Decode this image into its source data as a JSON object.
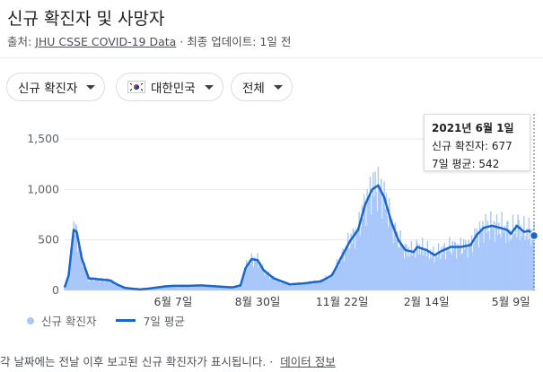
{
  "title": "신규 확진자 및 사망자",
  "source": {
    "prefix": "출처: ",
    "link": "JHU CSSE COVID-19 Data",
    "separator": " · ",
    "updated": "최종 업데이트: 1일 전"
  },
  "chips": [
    {
      "label": "신규 확진자"
    },
    {
      "label": "대한민국",
      "icon": "korea-flag-icon"
    },
    {
      "label": "전체"
    }
  ],
  "tooltip": {
    "date": "2021년 6월 1일",
    "line1": "신규 확진자: 677",
    "line2": "7일 평균: 542"
  },
  "legend": {
    "series1": "신규 확진자",
    "series2": "7일 평균"
  },
  "footer": {
    "text": "각 날짜에는 전날 이후 보고된 신규 확진자가 표시됩니다.",
    "sep": "·",
    "link": "데이터 정보"
  },
  "colors": {
    "bar": "#a8c7fa",
    "line": "#1a66c9",
    "grid": "#e8eaed",
    "axis_text": "#5f6368"
  },
  "chart_data": {
    "type": "bar",
    "title": "신규 확진자 및 사망자",
    "ylim": [
      0,
      1500
    ],
    "yticks": [
      0,
      500,
      1000,
      1500
    ],
    "ytick_labels": [
      "0",
      "500",
      "1,000",
      "1,500"
    ],
    "xticks": [
      {
        "date": "2020-06-07",
        "label": "6월 7일"
      },
      {
        "date": "2020-08-30",
        "label": "8월 30일"
      },
      {
        "date": "2020-11-22",
        "label": "11월 22일"
      },
      {
        "date": "2021-02-14",
        "label": "2월 14일"
      },
      {
        "date": "2021-05-09",
        "label": "5월 9일"
      }
    ],
    "xrange": [
      "2020-02-20",
      "2021-06-01"
    ],
    "grid": true,
    "legend_position": "bottom-left",
    "avg_keypoints": [
      [
        "2020-02-20",
        30
      ],
      [
        "2020-02-24",
        150
      ],
      [
        "2020-02-29",
        600
      ],
      [
        "2020-03-03",
        580
      ],
      [
        "2020-03-08",
        320
      ],
      [
        "2020-03-15",
        120
      ],
      [
        "2020-03-25",
        110
      ],
      [
        "2020-04-05",
        100
      ],
      [
        "2020-04-12",
        60
      ],
      [
        "2020-04-20",
        25
      ],
      [
        "2020-05-05",
        10
      ],
      [
        "2020-05-15",
        20
      ],
      [
        "2020-05-30",
        40
      ],
      [
        "2020-06-07",
        45
      ],
      [
        "2020-06-20",
        45
      ],
      [
        "2020-07-05",
        50
      ],
      [
        "2020-07-20",
        40
      ],
      [
        "2020-08-05",
        30
      ],
      [
        "2020-08-13",
        50
      ],
      [
        "2020-08-18",
        220
      ],
      [
        "2020-08-24",
        310
      ],
      [
        "2020-08-30",
        300
      ],
      [
        "2020-09-05",
        200
      ],
      [
        "2020-09-15",
        120
      ],
      [
        "2020-10-01",
        60
      ],
      [
        "2020-10-15",
        70
      ],
      [
        "2020-11-01",
        90
      ],
      [
        "2020-11-12",
        150
      ],
      [
        "2020-11-22",
        340
      ],
      [
        "2020-11-30",
        490
      ],
      [
        "2020-12-08",
        600
      ],
      [
        "2020-12-15",
        850
      ],
      [
        "2020-12-22",
        1000
      ],
      [
        "2020-12-28",
        1040
      ],
      [
        "2021-01-03",
        920
      ],
      [
        "2021-01-10",
        680
      ],
      [
        "2021-01-17",
        500
      ],
      [
        "2021-01-24",
        400
      ],
      [
        "2021-02-01",
        380
      ],
      [
        "2021-02-05",
        430
      ],
      [
        "2021-02-14",
        400
      ],
      [
        "2021-02-22",
        350
      ],
      [
        "2021-03-01",
        390
      ],
      [
        "2021-03-10",
        430
      ],
      [
        "2021-03-20",
        430
      ],
      [
        "2021-03-30",
        450
      ],
      [
        "2021-04-05",
        550
      ],
      [
        "2021-04-12",
        620
      ],
      [
        "2021-04-20",
        640
      ],
      [
        "2021-04-28",
        620
      ],
      [
        "2021-05-05",
        600
      ],
      [
        "2021-05-09",
        560
      ],
      [
        "2021-05-15",
        640
      ],
      [
        "2021-05-22",
        580
      ],
      [
        "2021-05-27",
        590
      ],
      [
        "2021-06-01",
        542
      ]
    ],
    "selected": {
      "date": "2021-06-01",
      "cases": 677,
      "avg": 542
    }
  }
}
